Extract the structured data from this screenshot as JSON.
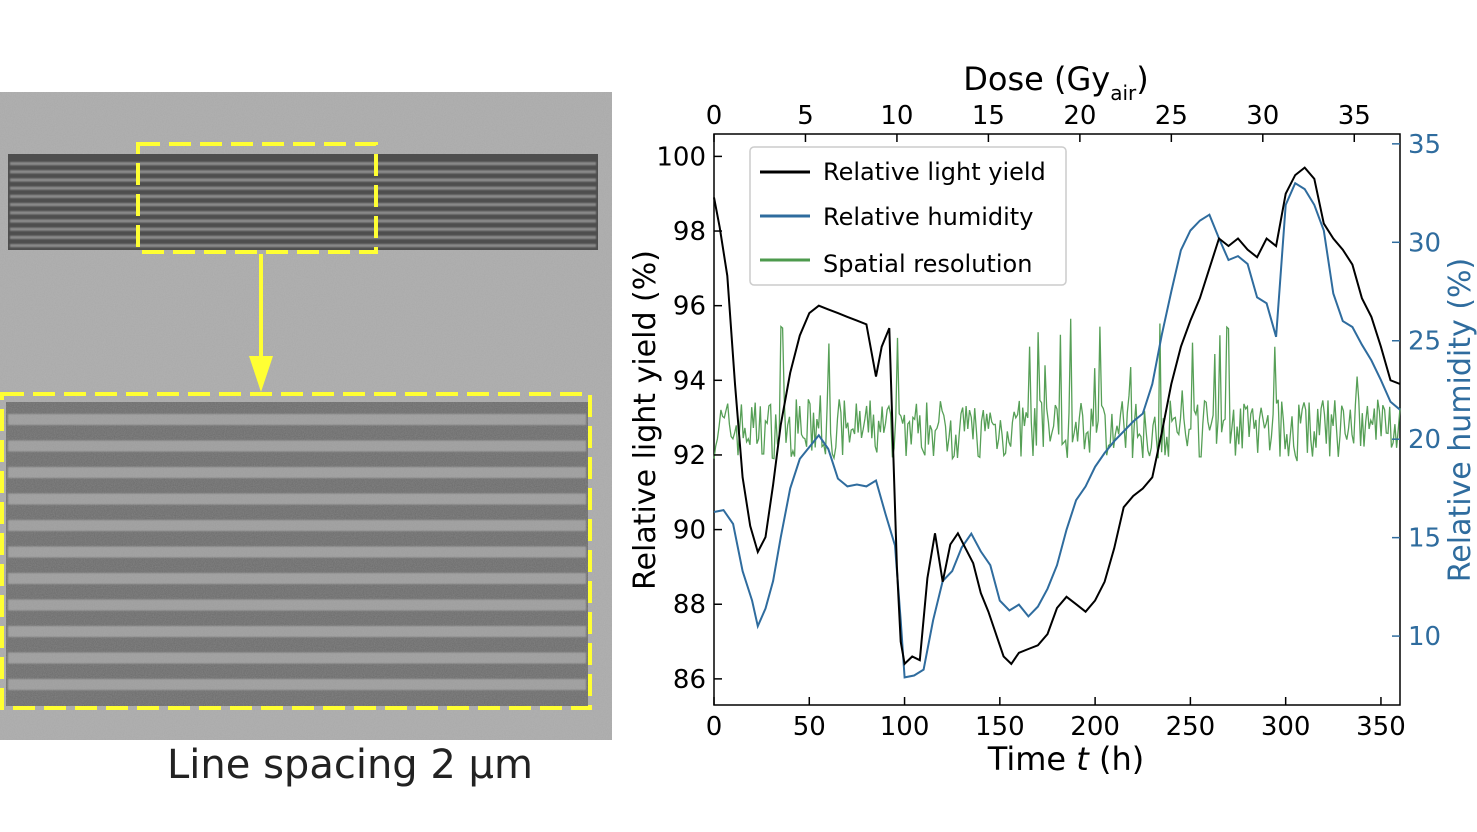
{
  "micrograph": {
    "caption": "Line spacing 2 μm"
  },
  "chart_data": {
    "type": "line",
    "xlabel_prefix": "Time ",
    "xlabel_var": "t",
    "xlabel_suffix": " (h)",
    "xlim": [
      0,
      360
    ],
    "xticks": [
      0,
      50,
      100,
      150,
      200,
      250,
      300,
      350
    ],
    "top_axis": {
      "label_prefix": "Dose (Gy",
      "label_sub": "air",
      "label_suffix": ")",
      "lim": [
        0,
        37.5
      ],
      "ticks": [
        0,
        5,
        10,
        15,
        20,
        25,
        30,
        35
      ]
    },
    "ylabel": "Relative light yield (%)",
    "ylim": [
      85.3,
      100.6
    ],
    "yticks": [
      86,
      88,
      90,
      92,
      94,
      96,
      98,
      100
    ],
    "y2label": "Relative humidity (%)",
    "y2lim": [
      6.5,
      35.5
    ],
    "y2ticks": [
      10,
      15,
      20,
      25,
      30,
      35
    ],
    "legend_position": "top-left",
    "grid": false,
    "series": [
      {
        "name": "Relative light yield",
        "color": "#000000",
        "axis": "left",
        "x": [
          0,
          3,
          7,
          11,
          15,
          19,
          23,
          27,
          31,
          35,
          40,
          45,
          50,
          55,
          60,
          65,
          70,
          75,
          80,
          85,
          88,
          92,
          96,
          98,
          100,
          104,
          108,
          112,
          116,
          120,
          124,
          128,
          132,
          136,
          140,
          144,
          148,
          152,
          156,
          160,
          165,
          170,
          175,
          180,
          185,
          190,
          195,
          200,
          205,
          210,
          215,
          220,
          225,
          230,
          235,
          240,
          245,
          250,
          255,
          260,
          265,
          270,
          275,
          280,
          285,
          290,
          295,
          300,
          305,
          310,
          315,
          320,
          325,
          330,
          335,
          340,
          345,
          350,
          355,
          360
        ],
        "y": [
          98.9,
          98.1,
          96.8,
          93.9,
          91.4,
          90.1,
          89.4,
          89.8,
          91.2,
          92.8,
          94.2,
          95.2,
          95.8,
          96.0,
          95.9,
          95.8,
          95.7,
          95.6,
          95.5,
          94.1,
          94.9,
          95.4,
          89.0,
          87.0,
          86.4,
          86.6,
          86.5,
          88.7,
          89.9,
          88.6,
          89.6,
          89.9,
          89.5,
          89.1,
          88.3,
          87.8,
          87.2,
          86.6,
          86.4,
          86.7,
          86.8,
          86.9,
          87.2,
          87.9,
          88.2,
          88.0,
          87.8,
          88.1,
          88.6,
          89.5,
          90.6,
          90.9,
          91.1,
          91.4,
          92.6,
          93.9,
          94.9,
          95.6,
          96.2,
          97.0,
          97.8,
          97.6,
          97.8,
          97.5,
          97.3,
          97.8,
          97.6,
          99.0,
          99.5,
          99.7,
          99.4,
          98.2,
          97.8,
          97.5,
          97.1,
          96.2,
          95.7,
          94.9,
          94.0,
          93.9
        ]
      },
      {
        "name": "Relative humidity",
        "color": "#2f6c9e",
        "axis": "right",
        "x": [
          0,
          5,
          10,
          15,
          20,
          23,
          27,
          31,
          35,
          40,
          45,
          50,
          55,
          60,
          65,
          70,
          75,
          80,
          85,
          90,
          95,
          98,
          100,
          105,
          110,
          115,
          120,
          125,
          130,
          135,
          140,
          145,
          150,
          155,
          160,
          165,
          170,
          175,
          180,
          185,
          190,
          195,
          200,
          205,
          210,
          215,
          220,
          225,
          230,
          235,
          240,
          245,
          250,
          255,
          260,
          265,
          270,
          275,
          280,
          285,
          290,
          295,
          300,
          305,
          310,
          315,
          320,
          325,
          330,
          335,
          340,
          345,
          350,
          355,
          360
        ],
        "y": [
          16.3,
          16.4,
          15.7,
          13.3,
          11.8,
          10.5,
          11.4,
          12.8,
          15.0,
          17.5,
          19.0,
          19.6,
          20.2,
          19.5,
          18.0,
          17.6,
          17.7,
          17.6,
          17.9,
          16.2,
          14.6,
          10.8,
          7.9,
          8.0,
          8.3,
          10.8,
          12.8,
          13.3,
          14.5,
          15.2,
          14.3,
          13.6,
          11.8,
          11.3,
          11.6,
          11.0,
          11.5,
          12.4,
          13.6,
          15.4,
          16.9,
          17.6,
          18.6,
          19.3,
          19.9,
          20.4,
          20.9,
          21.3,
          22.8,
          25.3,
          27.5,
          29.6,
          30.6,
          31.1,
          31.4,
          30.2,
          29.1,
          29.3,
          28.9,
          27.2,
          26.9,
          25.2,
          31.9,
          33.0,
          32.7,
          31.9,
          30.6,
          27.4,
          26.0,
          25.7,
          24.8,
          24.0,
          23.0,
          21.9,
          21.5
        ]
      },
      {
        "name": "Spatial resolution",
        "color": "#4d9a4d",
        "axis": "left",
        "noisy": true,
        "mean": 92.7
      }
    ]
  }
}
